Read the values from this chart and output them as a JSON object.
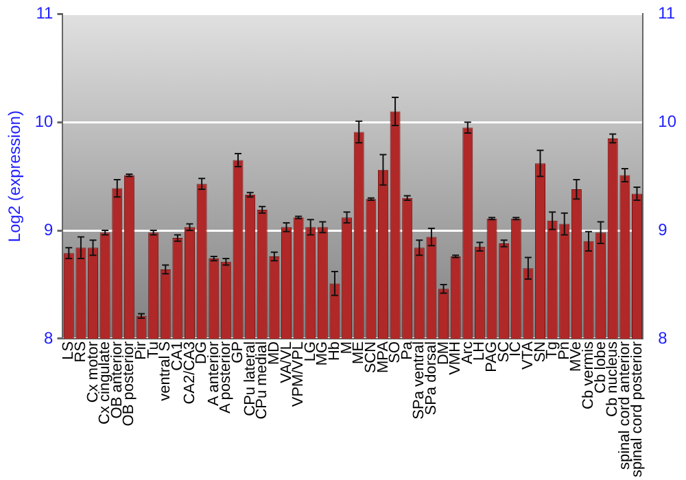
{
  "chart_data": {
    "type": "bar",
    "ylabel": "Log2 (expression)",
    "categories": [
      "LS",
      "RS",
      "Cx motor",
      "Cx cingulate",
      "OB anterior",
      "OB posterior",
      "Pir",
      "Tu",
      "ventral S",
      "CA1",
      "CA2/CA3",
      "DG",
      "A anterior",
      "A posterior",
      "GP",
      "CPu lateral",
      "CPu medial",
      "MD",
      "VA/VL",
      "VPM/VPL",
      "LG",
      "MG",
      "Hb",
      "M",
      "ME",
      "SCN",
      "MPA",
      "SO",
      "Pa",
      "SPa ventral",
      "SPa dorsal",
      "DM",
      "VMH",
      "Arc",
      "LH",
      "PAG",
      "SC",
      "IC",
      "VTA",
      "SN",
      "Tg",
      "Pn",
      "MVe",
      "Cb vermis",
      "Cb lobe",
      "Cb nucleus",
      "spinal cord anterior",
      "spinal cord posterior"
    ],
    "values": [
      8.79,
      8.84,
      8.84,
      8.98,
      9.39,
      9.51,
      8.21,
      8.98,
      8.64,
      8.93,
      9.03,
      9.43,
      8.74,
      8.71,
      9.65,
      9.33,
      9.19,
      8.76,
      9.03,
      9.12,
      9.03,
      9.03,
      8.51,
      9.12,
      9.91,
      9.29,
      9.56,
      10.1,
      9.3,
      8.84,
      8.94,
      8.46,
      8.76,
      9.95,
      8.85,
      9.11,
      8.88,
      9.11,
      8.65,
      9.62,
      9.09,
      9.06,
      9.38,
      8.9,
      8.98,
      9.85,
      9.51,
      9.34
    ],
    "errors": [
      0.05,
      0.1,
      0.07,
      0.02,
      0.08,
      0.01,
      0.02,
      0.02,
      0.04,
      0.03,
      0.03,
      0.05,
      0.02,
      0.03,
      0.06,
      0.02,
      0.03,
      0.04,
      0.04,
      0.01,
      0.07,
      0.05,
      0.11,
      0.05,
      0.1,
      0.01,
      0.14,
      0.13,
      0.02,
      0.07,
      0.08,
      0.04,
      0.01,
      0.05,
      0.04,
      0.01,
      0.03,
      0.01,
      0.1,
      0.12,
      0.08,
      0.1,
      0.09,
      0.09,
      0.1,
      0.04,
      0.06,
      0.06
    ],
    "color": "#b02828",
    "ylim": [
      8,
      11
    ],
    "yticks": [
      8,
      9,
      10,
      11
    ],
    "y2lim": [
      8,
      11
    ],
    "y2ticks": [
      8,
      9,
      10,
      11
    ],
    "grid": "y",
    "legend": false
  }
}
